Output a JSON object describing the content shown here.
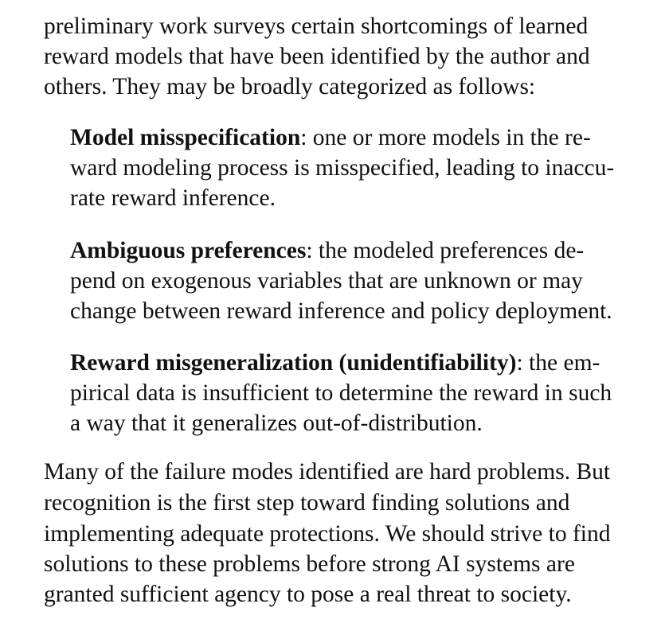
{
  "intro": {
    "lines": [
      "preliminary work surveys certain shortcomings of learned",
      "reward models that have been identified by the author and",
      "others. They may be broadly categorized as follows:"
    ]
  },
  "categories": [
    {
      "term": "Model misspecification",
      "first_rest": ": one or more models in the re-",
      "lines": [
        "ward modeling process is misspecified, leading to inaccu-",
        "rate reward inference."
      ]
    },
    {
      "term": "Ambiguous preferences",
      "first_rest": ": the modeled preferences de-",
      "lines": [
        "pend on exogenous variables that are unknown or may",
        "change between reward inference and policy deployment."
      ]
    },
    {
      "term": "Reward misgeneralization (unidentifiability)",
      "first_rest": ": the em-",
      "lines": [
        "pirical data is insufficient to determine the reward in such",
        "a way that it generalizes out-of-distribution."
      ]
    }
  ],
  "conclusion": {
    "lines": [
      "Many of the failure modes identified are hard problems. But",
      "recognition is the first step toward finding solutions and",
      "implementing adequate protections. We should strive to find",
      "solutions to these problems before strong AI systems are",
      "granted sufficient agency to pose a real threat to society."
    ]
  }
}
